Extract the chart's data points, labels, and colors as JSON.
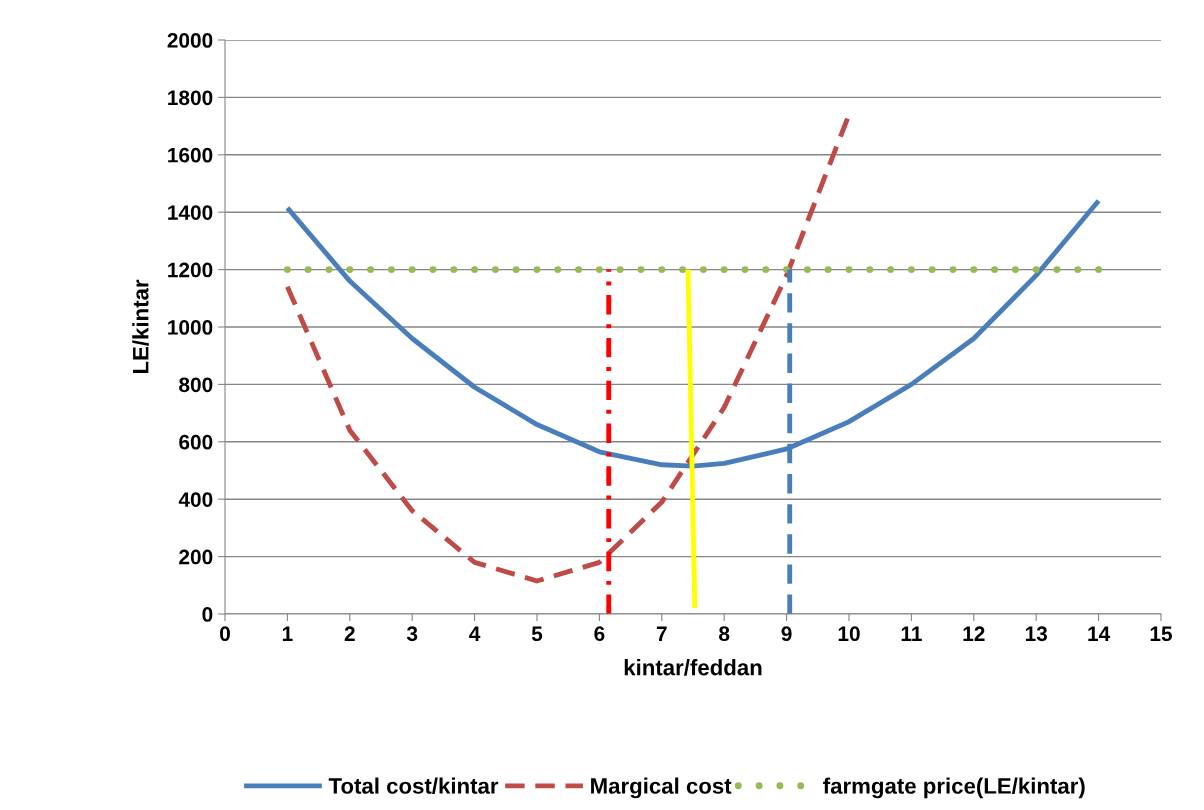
{
  "chart_data": {
    "type": "line",
    "xlabel": "kintar/feddan",
    "ylabel": "LE/kintar",
    "xlim": [
      0,
      15
    ],
    "xticks": [
      0,
      1,
      2,
      3,
      4,
      5,
      6,
      7,
      8,
      9,
      10,
      11,
      12,
      13,
      14,
      15
    ],
    "ylim": [
      0,
      2000
    ],
    "yticks": [
      0,
      200,
      400,
      600,
      800,
      1000,
      1200,
      1400,
      1600,
      1800,
      2000
    ],
    "grid": "y",
    "legend": "bottom",
    "marker": "none",
    "series": [
      {
        "name": "Total cost/kintar",
        "color": "#4a7ebb",
        "line_style": "solid",
        "x": [
          1,
          2,
          3,
          4,
          5,
          6,
          7,
          7.5,
          8,
          9,
          10,
          11,
          12,
          13,
          14
        ],
        "values": [
          1415,
          1160,
          960,
          790,
          660,
          565,
          520,
          515,
          525,
          575,
          670,
          800,
          960,
          1180,
          1440
        ]
      },
      {
        "name": "Margical cost",
        "color": "#be4b48",
        "line_style": "dashed",
        "x": [
          1,
          2,
          3,
          4,
          5,
          6,
          7,
          8,
          9,
          10
        ],
        "values": [
          1140,
          640,
          360,
          180,
          115,
          180,
          390,
          720,
          1180,
          1740
        ]
      },
      {
        "name": "farmgate price(LE/kintar)",
        "color": "#98b954",
        "line_style": "dotted",
        "x": [
          1,
          14
        ],
        "values": [
          1200,
          1200
        ]
      },
      {
        "color": "#ff0000",
        "line_style": "dashdot",
        "x": [
          6.15,
          6.15
        ],
        "values": [
          0,
          1200
        ]
      },
      {
        "color": "#ffff00",
        "line_style": "solid",
        "x": [
          7.42,
          7.53
        ],
        "values": [
          1200,
          20
        ]
      },
      {
        "color": "#4a7ebb",
        "line_style": "dashed",
        "x": [
          9.05,
          9.05
        ],
        "values": [
          0,
          1200
        ]
      }
    ]
  }
}
